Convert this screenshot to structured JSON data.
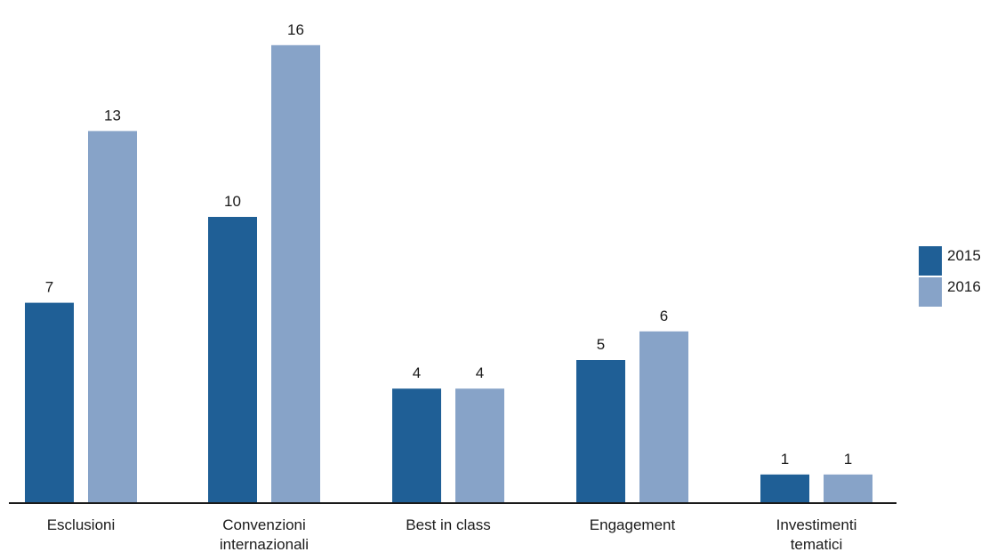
{
  "chart_data": {
    "type": "bar",
    "categories": [
      [
        "Esclusioni"
      ],
      [
        "Convenzioni",
        "internazionali"
      ],
      [
        "Best in class"
      ],
      [
        "Engagement"
      ],
      [
        "Investimenti",
        "tematici"
      ]
    ],
    "series": [
      {
        "name": "2015",
        "values": [
          7,
          10,
          4,
          5,
          1
        ],
        "color": "#1f5f96"
      },
      {
        "name": "2016",
        "values": [
          13,
          16,
          4,
          6,
          1
        ],
        "color": "#87a3c8"
      }
    ],
    "ylim": [
      0,
      17
    ],
    "grid": false,
    "legend_position": "right",
    "data_labels": true
  }
}
